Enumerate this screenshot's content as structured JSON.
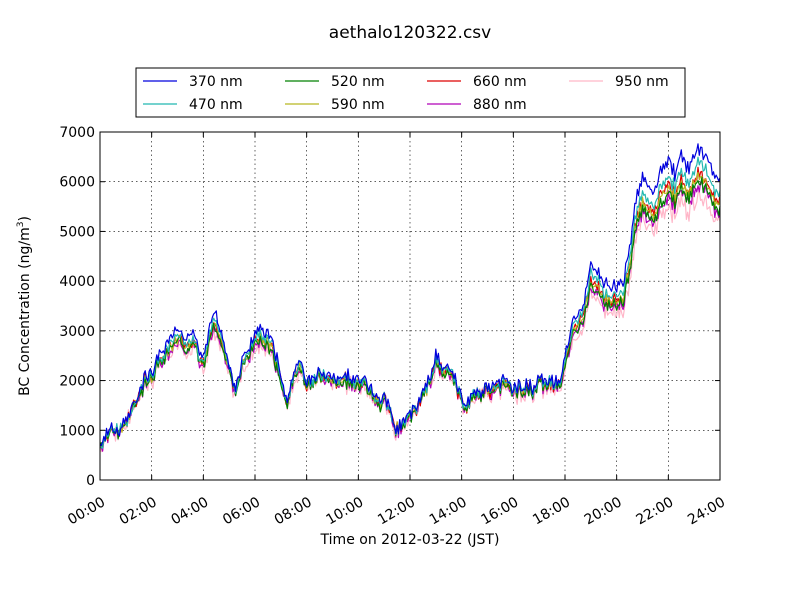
{
  "chart_data": {
    "type": "line",
    "title": "aethalo120322.csv",
    "xlabel": "Time on 2012-03-22 (JST)",
    "ylabel_main": "BC Concentration (ng/m",
    "ylabel_sup": "3",
    "ylabel_end": ")",
    "xlim": [
      0,
      24
    ],
    "ylim": [
      0,
      7000
    ],
    "grid": true,
    "legend_position": "top",
    "x_tick_values": [
      0,
      2,
      4,
      6,
      8,
      10,
      12,
      14,
      16,
      18,
      20,
      22,
      24
    ],
    "x_tick_labels": [
      "00:00",
      "02:00",
      "04:00",
      "06:00",
      "08:00",
      "10:00",
      "12:00",
      "14:00",
      "16:00",
      "18:00",
      "20:00",
      "22:00",
      "24:00"
    ],
    "y_ticks": [
      0,
      1000,
      2000,
      3000,
      4000,
      5000,
      6000,
      7000
    ],
    "base_x": [
      0,
      0.25,
      0.5,
      0.75,
      1,
      1.25,
      1.5,
      1.75,
      2,
      2.25,
      2.5,
      2.75,
      3,
      3.25,
      3.5,
      3.75,
      4,
      4.25,
      4.5,
      4.75,
      5,
      5.25,
      5.5,
      5.75,
      6,
      6.25,
      6.5,
      6.75,
      7,
      7.25,
      7.5,
      7.75,
      8,
      8.25,
      8.5,
      8.75,
      9,
      9.25,
      9.5,
      9.75,
      10,
      10.25,
      10.5,
      10.75,
      11,
      11.25,
      11.5,
      11.75,
      12,
      12.25,
      12.5,
      12.75,
      13,
      13.25,
      13.5,
      13.75,
      14,
      14.25,
      14.5,
      14.75,
      15,
      15.25,
      15.5,
      15.75,
      16,
      16.25,
      16.5,
      16.75,
      17,
      17.25,
      17.5,
      17.75,
      18,
      18.25,
      18.5,
      18.75,
      19,
      19.25,
      19.5,
      19.75,
      20,
      20.25,
      20.5,
      20.75,
      21,
      21.25,
      21.5,
      21.75,
      22,
      22.25,
      22.5,
      22.75,
      23,
      23.25,
      23.5,
      23.75,
      24
    ],
    "base_y": [
      700,
      900,
      1000,
      950,
      1100,
      1400,
      1650,
      2000,
      2050,
      2400,
      2550,
      2700,
      2850,
      2700,
      2800,
      2600,
      2300,
      2900,
      3200,
      2700,
      2200,
      1800,
      2300,
      2500,
      2800,
      2900,
      2800,
      2500,
      2000,
      1600,
      2100,
      2300,
      1850,
      2000,
      2050,
      2100,
      1950,
      2000,
      2050,
      1900,
      2000,
      1950,
      1800,
      1500,
      1600,
      1300,
      1000,
      1150,
      1300,
      1400,
      1700,
      2000,
      2400,
      2150,
      2200,
      1950,
      1550,
      1500,
      1750,
      1700,
      1800,
      1750,
      1900,
      1900,
      1800,
      1850,
      1850,
      1750,
      1950,
      1950,
      1900,
      1900,
      2300,
      2900,
      3200,
      3400,
      4000,
      3900,
      3700,
      3600,
      3650,
      3700,
      4300,
      5200,
      5600,
      5500,
      5400,
      5800,
      5900,
      5700,
      6000,
      5800,
      6100,
      6200,
      6000,
      5700,
      5600
    ],
    "series": [
      {
        "name": "370 nm",
        "color": "#0000dd",
        "scale": 1.08,
        "jitter": 70,
        "seed": 1
      },
      {
        "name": "470 nm",
        "color": "#22b8b0",
        "scale": 1.03,
        "jitter": 70,
        "seed": 2
      },
      {
        "name": "520 nm",
        "color": "#008000",
        "scale": 0.97,
        "jitter": 70,
        "seed": 3
      },
      {
        "name": "590 nm",
        "color": "#b8b820",
        "scale": 0.99,
        "jitter": 70,
        "seed": 4
      },
      {
        "name": "660 nm",
        "color": "#dd0000",
        "scale": 1.0,
        "jitter": 80,
        "seed": 5
      },
      {
        "name": "880 nm",
        "color": "#b000b8",
        "scale": 0.96,
        "jitter": 90,
        "seed": 6
      },
      {
        "name": "950 nm",
        "color": "#ffb6c8",
        "scale": 0.93,
        "jitter": 140,
        "seed": 7
      }
    ]
  }
}
